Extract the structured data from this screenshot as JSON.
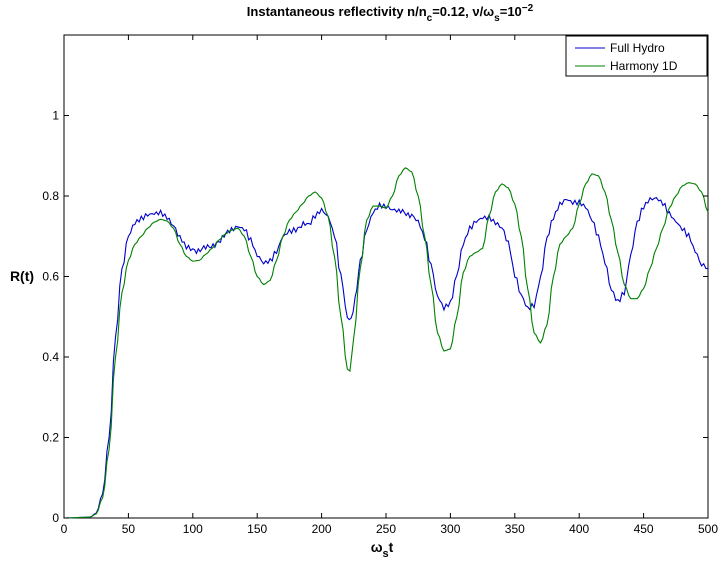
{
  "chart_data": {
    "type": "line",
    "title": {
      "part1": "Instantaneous reflectivity n/n",
      "sub1": "c",
      "part2": "=0.12, ν/ω",
      "sub2": "s",
      "part3": "=10",
      "sup": "−2"
    },
    "xlabel": {
      "main": "ω",
      "sub": "s",
      "tail": "t"
    },
    "ylabel": "R(t)",
    "xlim": [
      0,
      500
    ],
    "ylim": [
      0,
      1.2
    ],
    "xticks": [
      0,
      50,
      100,
      150,
      200,
      250,
      300,
      350,
      400,
      450,
      500
    ],
    "yticks": [
      0,
      0.2,
      0.4,
      0.6,
      0.8,
      1
    ],
    "yticklabels": [
      "0",
      "0.2",
      "0.4",
      "0.6",
      "0.8",
      "1"
    ],
    "grid": false,
    "legend": "top-right",
    "series": [
      {
        "name": "Full Hydro",
        "color": "#0000cc",
        "points": [
          [
            0,
            0
          ],
          [
            20,
            0.002
          ],
          [
            25,
            0.012
          ],
          [
            30,
            0.06
          ],
          [
            35,
            0.2
          ],
          [
            40,
            0.45
          ],
          [
            45,
            0.62
          ],
          [
            50,
            0.7
          ],
          [
            55,
            0.73
          ],
          [
            60,
            0.74
          ],
          [
            65,
            0.75
          ],
          [
            70,
            0.755
          ],
          [
            75,
            0.76
          ],
          [
            80,
            0.75
          ],
          [
            85,
            0.73
          ],
          [
            90,
            0.7
          ],
          [
            95,
            0.675
          ],
          [
            100,
            0.665
          ],
          [
            110,
            0.67
          ],
          [
            120,
            0.685
          ],
          [
            130,
            0.72
          ],
          [
            135,
            0.728
          ],
          [
            140,
            0.72
          ],
          [
            145,
            0.69
          ],
          [
            150,
            0.65
          ],
          [
            155,
            0.63
          ],
          [
            160,
            0.635
          ],
          [
            165,
            0.66
          ],
          [
            170,
            0.7
          ],
          [
            175,
            0.715
          ],
          [
            180,
            0.72
          ],
          [
            190,
            0.73
          ],
          [
            195,
            0.75
          ],
          [
            200,
            0.762
          ],
          [
            205,
            0.745
          ],
          [
            210,
            0.7
          ],
          [
            215,
            0.6
          ],
          [
            220,
            0.5
          ],
          [
            223,
            0.49
          ],
          [
            226,
            0.54
          ],
          [
            230,
            0.64
          ],
          [
            235,
            0.72
          ],
          [
            240,
            0.76
          ],
          [
            245,
            0.775
          ],
          [
            250,
            0.77
          ],
          [
            255,
            0.762
          ],
          [
            260,
            0.76
          ],
          [
            270,
            0.755
          ],
          [
            275,
            0.74
          ],
          [
            280,
            0.7
          ],
          [
            285,
            0.63
          ],
          [
            290,
            0.55
          ],
          [
            295,
            0.52
          ],
          [
            300,
            0.53
          ],
          [
            305,
            0.6
          ],
          [
            310,
            0.68
          ],
          [
            315,
            0.72
          ],
          [
            320,
            0.74
          ],
          [
            325,
            0.75
          ],
          [
            330,
            0.75
          ],
          [
            335,
            0.735
          ],
          [
            340,
            0.72
          ],
          [
            345,
            0.68
          ],
          [
            350,
            0.6
          ],
          [
            355,
            0.55
          ],
          [
            360,
            0.52
          ],
          [
            365,
            0.53
          ],
          [
            370,
            0.6
          ],
          [
            375,
            0.7
          ],
          [
            380,
            0.75
          ],
          [
            385,
            0.78
          ],
          [
            390,
            0.79
          ],
          [
            395,
            0.78
          ],
          [
            400,
            0.78
          ],
          [
            405,
            0.77
          ],
          [
            410,
            0.74
          ],
          [
            415,
            0.7
          ],
          [
            420,
            0.64
          ],
          [
            425,
            0.57
          ],
          [
            430,
            0.54
          ],
          [
            435,
            0.56
          ],
          [
            440,
            0.65
          ],
          [
            445,
            0.73
          ],
          [
            450,
            0.77
          ],
          [
            455,
            0.79
          ],
          [
            460,
            0.795
          ],
          [
            465,
            0.785
          ],
          [
            470,
            0.76
          ],
          [
            475,
            0.74
          ],
          [
            480,
            0.72
          ],
          [
            485,
            0.7
          ],
          [
            490,
            0.66
          ],
          [
            495,
            0.625
          ],
          [
            500,
            0.62
          ]
        ]
      },
      {
        "name": "Harmony 1D",
        "color": "#008000",
        "points": [
          [
            0,
            0
          ],
          [
            20,
            0.002
          ],
          [
            25,
            0.01
          ],
          [
            30,
            0.05
          ],
          [
            35,
            0.17
          ],
          [
            40,
            0.4
          ],
          [
            45,
            0.56
          ],
          [
            50,
            0.64
          ],
          [
            55,
            0.68
          ],
          [
            60,
            0.7
          ],
          [
            65,
            0.72
          ],
          [
            70,
            0.735
          ],
          [
            75,
            0.742
          ],
          [
            80,
            0.738
          ],
          [
            85,
            0.72
          ],
          [
            90,
            0.68
          ],
          [
            95,
            0.65
          ],
          [
            100,
            0.638
          ],
          [
            105,
            0.64
          ],
          [
            110,
            0.655
          ],
          [
            115,
            0.67
          ],
          [
            120,
            0.69
          ],
          [
            125,
            0.705
          ],
          [
            130,
            0.715
          ],
          [
            135,
            0.72
          ],
          [
            140,
            0.7
          ],
          [
            145,
            0.65
          ],
          [
            150,
            0.6
          ],
          [
            155,
            0.58
          ],
          [
            160,
            0.59
          ],
          [
            165,
            0.64
          ],
          [
            170,
            0.7
          ],
          [
            175,
            0.74
          ],
          [
            180,
            0.76
          ],
          [
            185,
            0.78
          ],
          [
            190,
            0.8
          ],
          [
            195,
            0.81
          ],
          [
            200,
            0.795
          ],
          [
            205,
            0.75
          ],
          [
            210,
            0.65
          ],
          [
            215,
            0.5
          ],
          [
            220,
            0.37
          ],
          [
            222,
            0.365
          ],
          [
            225,
            0.45
          ],
          [
            230,
            0.62
          ],
          [
            235,
            0.74
          ],
          [
            240,
            0.775
          ],
          [
            245,
            0.775
          ],
          [
            250,
            0.77
          ],
          [
            255,
            0.8
          ],
          [
            260,
            0.85
          ],
          [
            265,
            0.87
          ],
          [
            270,
            0.86
          ],
          [
            275,
            0.8
          ],
          [
            280,
            0.7
          ],
          [
            285,
            0.58
          ],
          [
            290,
            0.46
          ],
          [
            295,
            0.415
          ],
          [
            300,
            0.42
          ],
          [
            305,
            0.5
          ],
          [
            310,
            0.61
          ],
          [
            315,
            0.65
          ],
          [
            320,
            0.66
          ],
          [
            325,
            0.67
          ],
          [
            330,
            0.75
          ],
          [
            335,
            0.81
          ],
          [
            340,
            0.83
          ],
          [
            345,
            0.82
          ],
          [
            350,
            0.78
          ],
          [
            355,
            0.7
          ],
          [
            360,
            0.57
          ],
          [
            365,
            0.46
          ],
          [
            370,
            0.435
          ],
          [
            375,
            0.48
          ],
          [
            380,
            0.6
          ],
          [
            385,
            0.68
          ],
          [
            390,
            0.7
          ],
          [
            395,
            0.72
          ],
          [
            400,
            0.78
          ],
          [
            405,
            0.83
          ],
          [
            410,
            0.855
          ],
          [
            415,
            0.85
          ],
          [
            420,
            0.81
          ],
          [
            425,
            0.74
          ],
          [
            430,
            0.66
          ],
          [
            435,
            0.58
          ],
          [
            440,
            0.545
          ],
          [
            445,
            0.545
          ],
          [
            450,
            0.57
          ],
          [
            455,
            0.62
          ],
          [
            460,
            0.67
          ],
          [
            465,
            0.72
          ],
          [
            470,
            0.77
          ],
          [
            475,
            0.8
          ],
          [
            480,
            0.825
          ],
          [
            485,
            0.833
          ],
          [
            490,
            0.83
          ],
          [
            495,
            0.81
          ],
          [
            500,
            0.76
          ]
        ]
      }
    ]
  }
}
